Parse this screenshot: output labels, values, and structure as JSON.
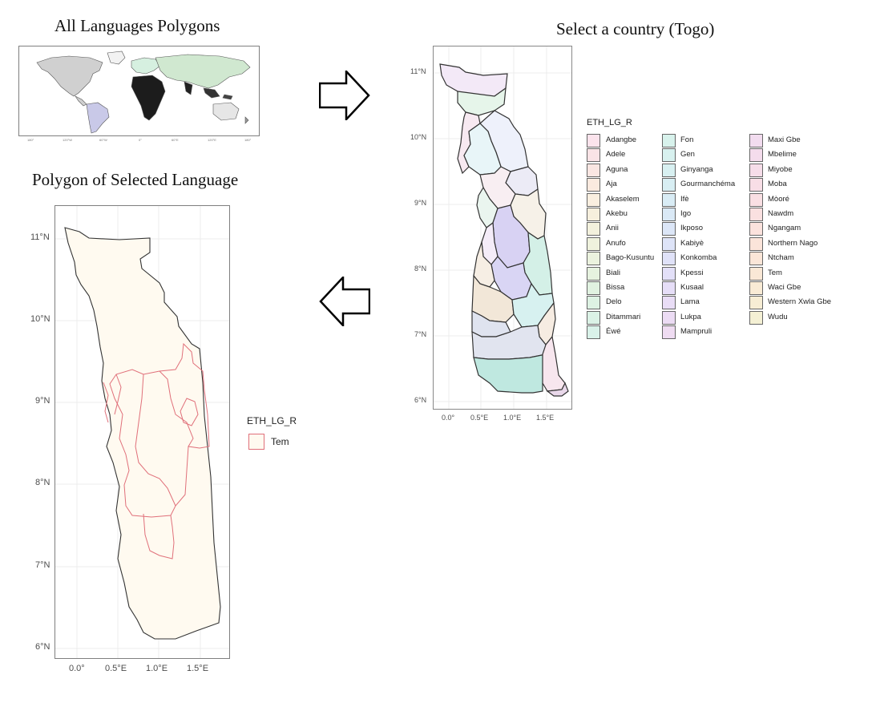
{
  "panels": {
    "world": {
      "title": "All Languages Polygons",
      "x_ticks": [
        "180°",
        "120°W",
        "60°W",
        "0°",
        "60°E",
        "120°E",
        "180°"
      ]
    },
    "togo": {
      "title": "Select a country (Togo)",
      "y_ticks": [
        "11°N",
        "10°N",
        "9°N",
        "8°N",
        "7°N",
        "6°N"
      ],
      "x_ticks": [
        "0.0°",
        "0.5°E",
        "1.0°E",
        "1.5°E"
      ],
      "legend_title": "ETH_LG_R",
      "legend_items": [
        "Adangbe",
        "Adele",
        "Aguna",
        "Aja",
        "Akaselem",
        "Akebu",
        "Anii",
        "Anufo",
        "Bago-Kusuntu",
        "Biali",
        "Bissa",
        "Delo",
        "Ditammari",
        "Éwé",
        "Fon",
        "Gen",
        "Ginyanga",
        "Gourmanchéma",
        "Ifè",
        "Igo",
        "Ikposo",
        "Kabiyè",
        "Konkomba",
        "Kpessi",
        "Kusaal",
        "Lama",
        "Lukpa",
        "Mampruli",
        "Maxi Gbe",
        "Mbelime",
        "Miyobe",
        "Moba",
        "Mòoré",
        "Nawdm",
        "Ngangam",
        "Northern Nago",
        "Ntcham",
        "Tem",
        "Waci Gbe",
        "Western Xwla Gbe",
        "Wudu"
      ]
    },
    "selected": {
      "title": "Polygon of Selected Language",
      "y_ticks": [
        "11°N",
        "10°N",
        "9°N",
        "8°N",
        "7°N",
        "6°N"
      ],
      "x_ticks": [
        "0.0°",
        "0.5°E",
        "1.0°E",
        "1.5°E"
      ],
      "legend_title": "ETH_LG_R",
      "legend_items": [
        "Tem"
      ]
    }
  },
  "colors": {
    "country_fill": "#fffaf0",
    "selected_outline": "#e0707a",
    "land": "#d8d8d8",
    "arrow_stroke": "#000000"
  },
  "icons": [
    "right-arrow-icon",
    "left-arrow-icon"
  ]
}
